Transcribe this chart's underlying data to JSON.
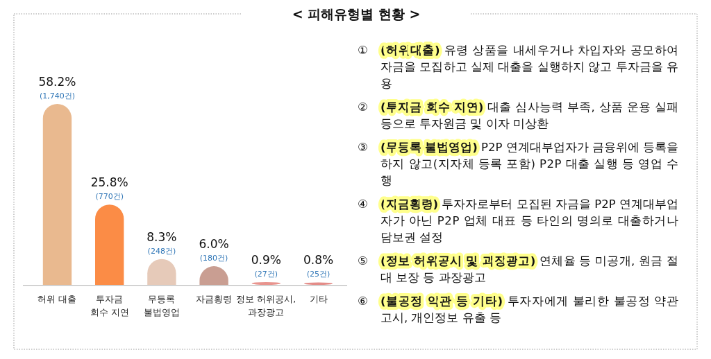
{
  "chart_data": [
    {
      "type": "bar",
      "title": "< 피해유형별 현황 >",
      "categories": [
        "허위 대출",
        "투자금\n회수 지연",
        "무등록\n불법영업",
        "자금횡령",
        "정보 허위공시,\n과장광고",
        "기타"
      ],
      "values": [
        58.2,
        25.8,
        8.3,
        6.0,
        0.9,
        0.8
      ],
      "colors": [
        "#e9b98f",
        "#fb8c46",
        "#e6cab9",
        "#c99e92",
        "#e8948e",
        "#e38c88"
      ],
      "value_labels": [
        "58.2%",
        "25.8%",
        "8.3%",
        "6.0%",
        "0.9%",
        "0.8%"
      ],
      "annotations": [
        {
          "text": "(1,740건)",
          "x": "허위 대출",
          "y": 58.2
        },
        {
          "text": "(770건)",
          "x": "투자금\n회수 지연",
          "y": 25.8
        },
        {
          "text": "(248건)",
          "x": "무등록\n불법영업",
          "y": 8.3
        },
        {
          "text": "(180건)",
          "x": "자금횡령",
          "y": 6.0
        },
        {
          "text": "(27건)",
          "x": "정보 허위공시,\n과장광고",
          "y": 0.9
        },
        {
          "text": "(25건)",
          "x": "기타",
          "y": 0.8
        }
      ]
    },
    {
      "type": "other",
      "annotations": [
        "① (허위대출) 유령 상품을 내세우거나 차입자와 공모하여 자금을 모집하고 실제 대출을 실행하지 않고 투자금을 유용",
        "② (투자금 회수 지연) 대출 심사능력 부족, 상품 운용 실패 등으로 투자원금 및 이자 미상환",
        "③ (무등록 불법영업) P2P 연계대부업자가 금융위에 등록을 하지 않고(지자체 등록 포함) P2P 대출 실행 등 영업 수행",
        "④ (자금횡령) 투자자로부터 모집된 자금을 P2P 연계대부업자가 아닌 P2P 업체 대표 등 타인의 명의로 대출하거나 담보권 설정",
        "⑤ (정보 허위공시 및 과장광고) 연체율 등 미공개, 원금 절대 보장 등 과장광고",
        "⑥ (불공정 약관 등 기타) 투자자에게 불리한 불공정 약관 고시, 개인정보 유출 등"
      ]
    }
  ]
}
